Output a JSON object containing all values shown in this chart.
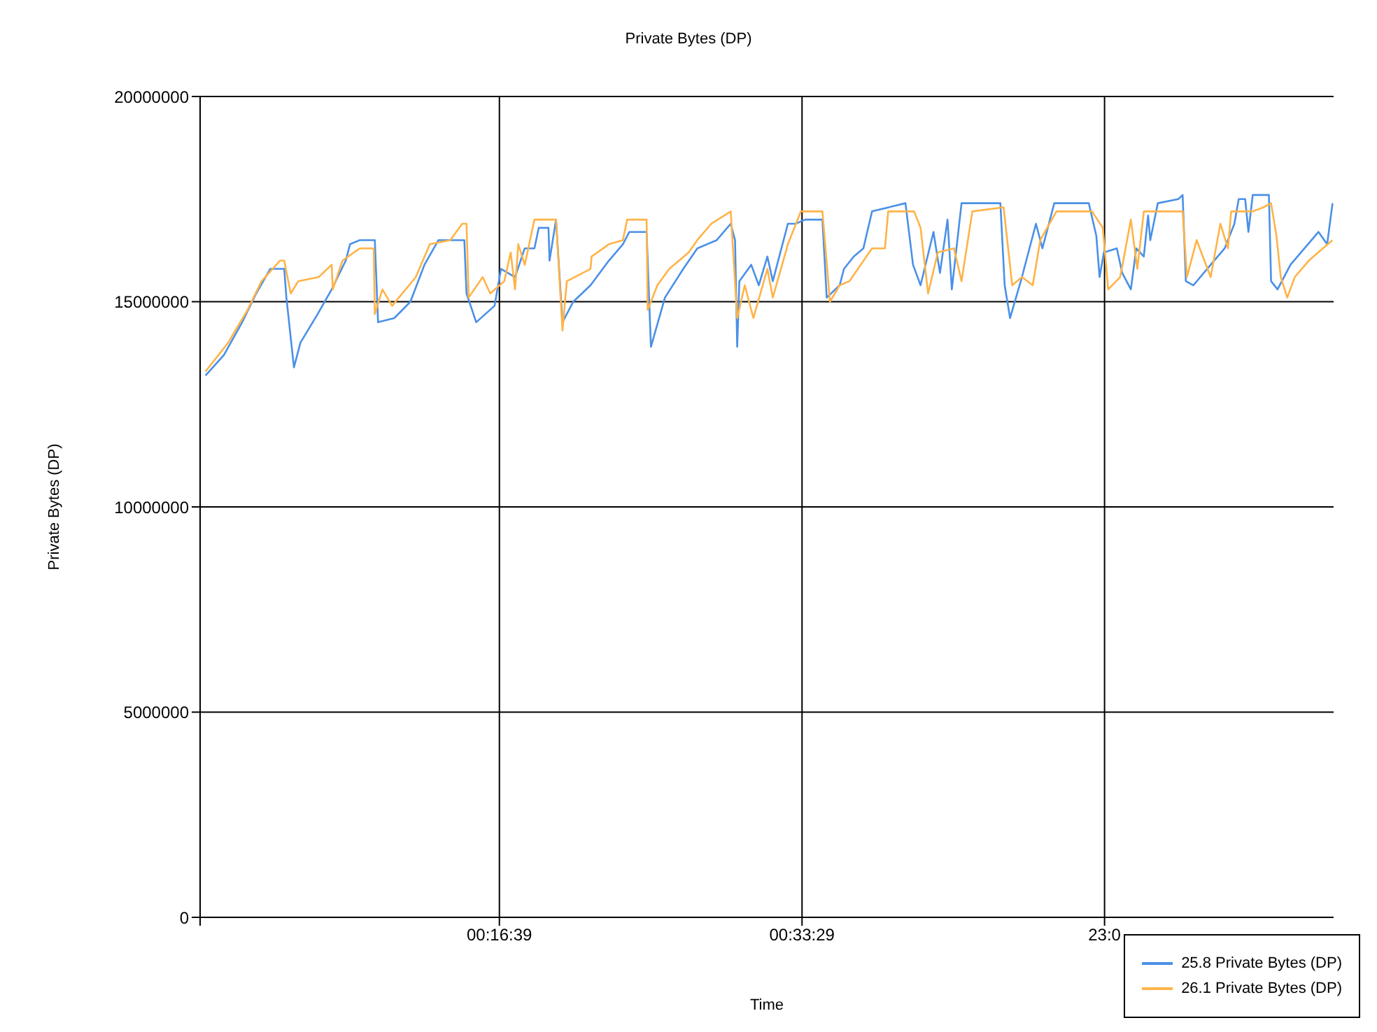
{
  "chart_data": {
    "type": "line",
    "title": "Private Bytes (DP)",
    "xlabel": "Time",
    "ylabel": "Private Bytes (DP)",
    "xlim": [
      0,
      1.051
    ],
    "xticks": [
      {
        "value": 0,
        "label": null
      },
      {
        "value": 0.2775,
        "label": "00:16:39"
      },
      {
        "value": 0.5581,
        "label": "00:33:29"
      },
      {
        "value": 0.8386,
        "label": "23:0"
      }
    ],
    "ylim": [
      0,
      20000000
    ],
    "yticks": [
      0,
      5000000,
      10000000,
      15000000,
      20000000
    ],
    "grid": true,
    "legend": "bottom right",
    "marker": "none",
    "line_style": "solid",
    "series": [
      {
        "name": "25.8 Private Bytes (DP)",
        "color": "#4a90e8",
        "x": [
          0.005,
          0.022,
          0.039,
          0.052,
          0.065,
          0.078,
          0.08,
          0.087,
          0.093,
          0.109,
          0.122,
          0.135,
          0.139,
          0.148,
          0.162,
          0.165,
          0.18,
          0.195,
          0.208,
          0.221,
          0.245,
          0.247,
          0.256,
          0.273,
          0.279,
          0.292,
          0.301,
          0.31,
          0.314,
          0.323,
          0.324,
          0.33,
          0.336,
          0.346,
          0.362,
          0.379,
          0.392,
          0.398,
          0.414,
          0.418,
          0.431,
          0.448,
          0.461,
          0.479,
          0.492,
          0.496,
          0.498,
          0.5,
          0.511,
          0.518,
          0.526,
          0.531,
          0.539,
          0.545,
          0.552,
          0.561,
          0.577,
          0.581,
          0.593,
          0.597,
          0.606,
          0.615,
          0.623,
          0.654,
          0.661,
          0.668,
          0.68,
          0.686,
          0.693,
          0.697,
          0.706,
          0.742,
          0.746,
          0.751,
          0.762,
          0.775,
          0.781,
          0.792,
          0.824,
          0.831,
          0.834,
          0.838,
          0.85,
          0.855,
          0.863,
          0.868,
          0.875,
          0.879,
          0.881,
          0.888,
          0.907,
          0.911,
          0.914,
          0.921,
          0.937,
          0.95,
          0.959,
          0.963,
          0.969,
          0.972,
          0.976,
          0.991,
          0.993,
          0.999,
          1.011,
          1.024,
          1.037,
          1.045,
          1.05
        ],
        "values": [
          13200000,
          13700000,
          14500000,
          15200000,
          15800000,
          15800000,
          15100000,
          13400000,
          14000000,
          14700000,
          15300000,
          16000000,
          16400000,
          16500000,
          16500000,
          14500000,
          14600000,
          15000000,
          15900000,
          16500000,
          16500000,
          15200000,
          14500000,
          14900000,
          15800000,
          15600000,
          16300000,
          16300000,
          16800000,
          16800000,
          16000000,
          17000000,
          14500000,
          15000000,
          15400000,
          16000000,
          16400000,
          16700000,
          16700000,
          13900000,
          15100000,
          15800000,
          16300000,
          16500000,
          16900000,
          16500000,
          13900000,
          15500000,
          15900000,
          15400000,
          16100000,
          15500000,
          16300000,
          16900000,
          16900000,
          17000000,
          17000000,
          15100000,
          15400000,
          15800000,
          16100000,
          16300000,
          17200000,
          17400000,
          15900000,
          15400000,
          16700000,
          15700000,
          17000000,
          15300000,
          17400000,
          17400000,
          15400000,
          14600000,
          15600000,
          16900000,
          16300000,
          17400000,
          17400000,
          16600000,
          15600000,
          16200000,
          16300000,
          15700000,
          15300000,
          16300000,
          16100000,
          17100000,
          16500000,
          17400000,
          17500000,
          17600000,
          15500000,
          15400000,
          15900000,
          16300000,
          16900000,
          17500000,
          17500000,
          16700000,
          17600000,
          17600000,
          15500000,
          15300000,
          15900000,
          16300000,
          16700000,
          16400000,
          17400000
        ]
      },
      {
        "name": "26.1 Private Bytes (DP)",
        "color": "#ffb347",
        "x": [
          0.005,
          0.026,
          0.044,
          0.057,
          0.074,
          0.078,
          0.084,
          0.091,
          0.11,
          0.122,
          0.123,
          0.132,
          0.148,
          0.161,
          0.162,
          0.169,
          0.178,
          0.2,
          0.213,
          0.232,
          0.243,
          0.247,
          0.249,
          0.262,
          0.269,
          0.282,
          0.288,
          0.292,
          0.295,
          0.301,
          0.31,
          0.33,
          0.336,
          0.34,
          0.362,
          0.363,
          0.379,
          0.392,
          0.396,
          0.414,
          0.415,
          0.424,
          0.435,
          0.453,
          0.461,
          0.474,
          0.492,
          0.498,
          0.505,
          0.513,
          0.526,
          0.531,
          0.545,
          0.557,
          0.563,
          0.577,
          0.584,
          0.593,
          0.602,
          0.623,
          0.635,
          0.638,
          0.662,
          0.668,
          0.675,
          0.684,
          0.699,
          0.706,
          0.716,
          0.745,
          0.753,
          0.762,
          0.772,
          0.779,
          0.794,
          0.827,
          0.837,
          0.842,
          0.853,
          0.856,
          0.863,
          0.869,
          0.875,
          0.911,
          0.915,
          0.924,
          0.937,
          0.946,
          0.953,
          0.956,
          0.976,
          0.986,
          0.993,
          0.998,
          1.002,
          1.008,
          1.015,
          1.028,
          1.041,
          1.05
        ],
        "values": [
          13300000,
          14000000,
          14800000,
          15500000,
          16000000,
          16000000,
          15200000,
          15500000,
          15600000,
          15900000,
          15300000,
          16000000,
          16300000,
          16300000,
          14700000,
          15300000,
          14900000,
          15600000,
          16400000,
          16500000,
          16900000,
          16900000,
          15100000,
          15600000,
          15200000,
          15500000,
          16200000,
          15300000,
          16400000,
          15900000,
          17000000,
          17000000,
          14300000,
          15500000,
          15800000,
          16100000,
          16400000,
          16500000,
          17000000,
          17000000,
          14800000,
          15400000,
          15800000,
          16200000,
          16500000,
          16900000,
          17200000,
          14600000,
          15400000,
          14600000,
          15800000,
          15100000,
          16400000,
          17200000,
          17200000,
          17200000,
          15000000,
          15400000,
          15500000,
          16300000,
          16300000,
          17200000,
          17200000,
          16800000,
          15200000,
          16200000,
          16300000,
          15500000,
          17200000,
          17300000,
          15400000,
          15600000,
          15400000,
          16500000,
          17200000,
          17200000,
          16800000,
          15300000,
          15600000,
          16000000,
          17000000,
          15800000,
          17200000,
          17200000,
          15600000,
          16500000,
          15600000,
          16900000,
          16300000,
          17200000,
          17200000,
          17300000,
          17400000,
          16600000,
          15600000,
          15100000,
          15600000,
          16000000,
          16300000,
          16500000
        ]
      }
    ]
  }
}
